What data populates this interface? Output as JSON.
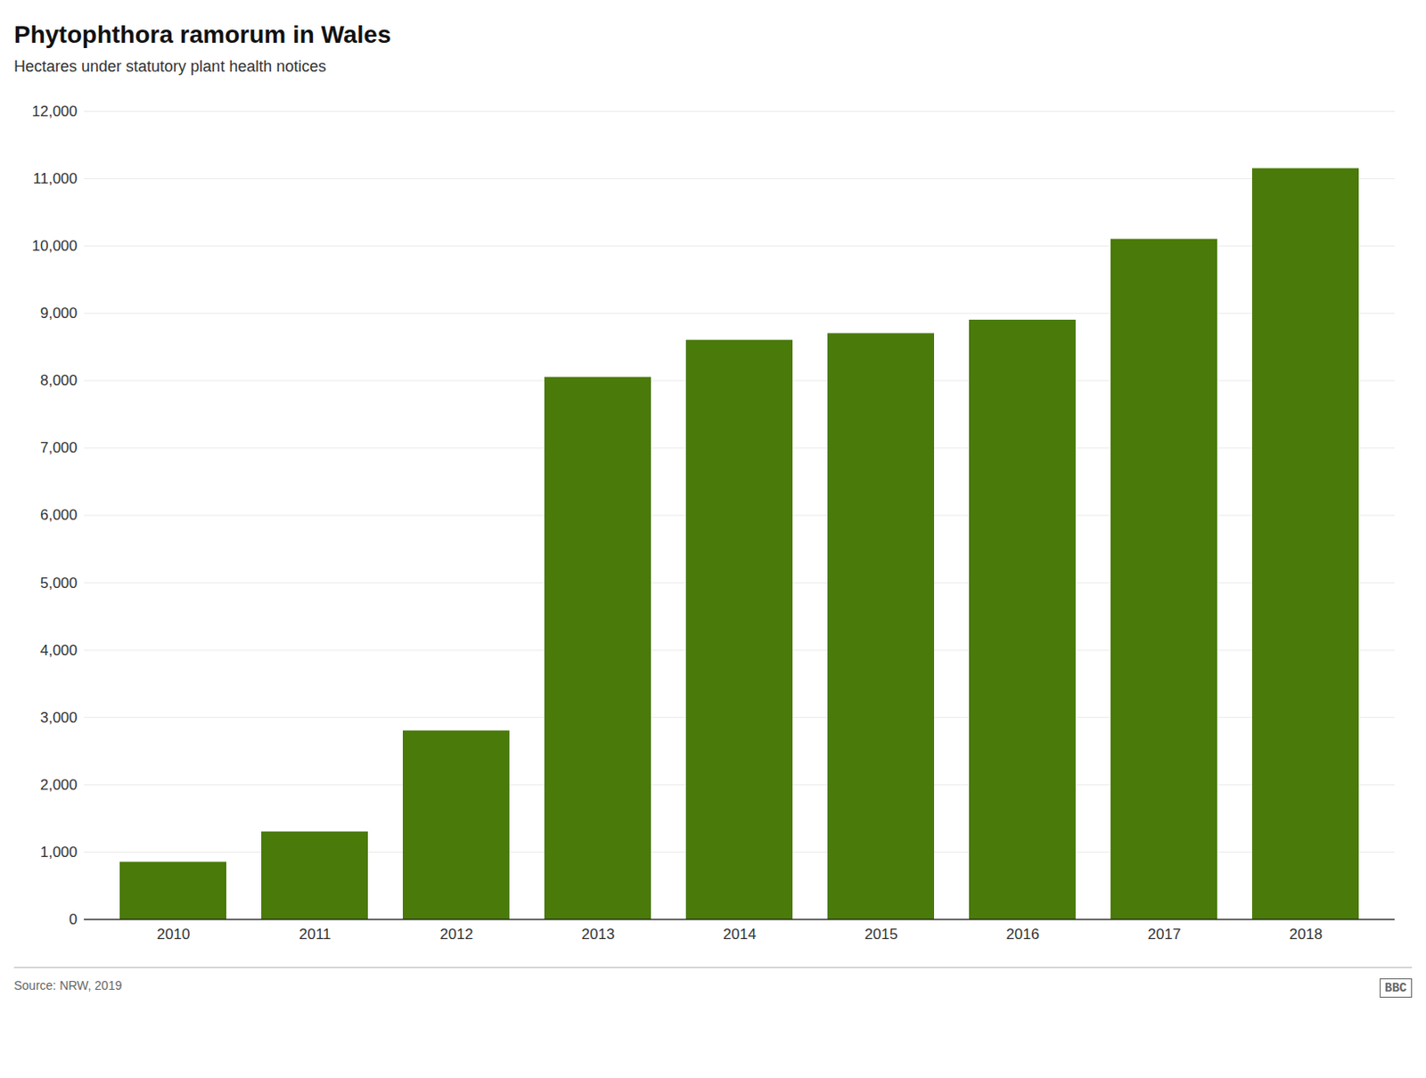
{
  "chart_data": {
    "type": "bar",
    "title": "Phytophthora ramorum in Wales",
    "subtitle": "Hectares under statutory plant health notices",
    "source": "Source: NRW, 2019",
    "annotations": [
      "BBC"
    ],
    "categories": [
      "2010",
      "2011",
      "2012",
      "2013",
      "2014",
      "2015",
      "2016",
      "2017",
      "2018"
    ],
    "values": [
      850,
      1300,
      2800,
      8050,
      8600,
      8700,
      8900,
      10100,
      11150
    ],
    "color": "#4a7a0a",
    "ylim": [
      0,
      12000
    ],
    "yticks": [
      0,
      {
        "value": 1000,
        "label": "1,000"
      },
      {
        "value": 2000,
        "label": "2,000"
      },
      {
        "value": 3000,
        "label": "3,000"
      },
      {
        "value": 4000,
        "label": "4,000"
      },
      {
        "value": 5000,
        "label": "5,000"
      },
      {
        "value": 6000,
        "label": "6,000"
      },
      {
        "value": 7000,
        "label": "7,000"
      },
      {
        "value": 8000,
        "label": "8,000"
      },
      {
        "value": 9000,
        "label": "9,000"
      },
      {
        "value": 10000,
        "label": "10,000"
      },
      {
        "value": 11000,
        "label": "11,000"
      },
      {
        "value": 12000,
        "label": "12,000"
      }
    ],
    "grid": true
  }
}
